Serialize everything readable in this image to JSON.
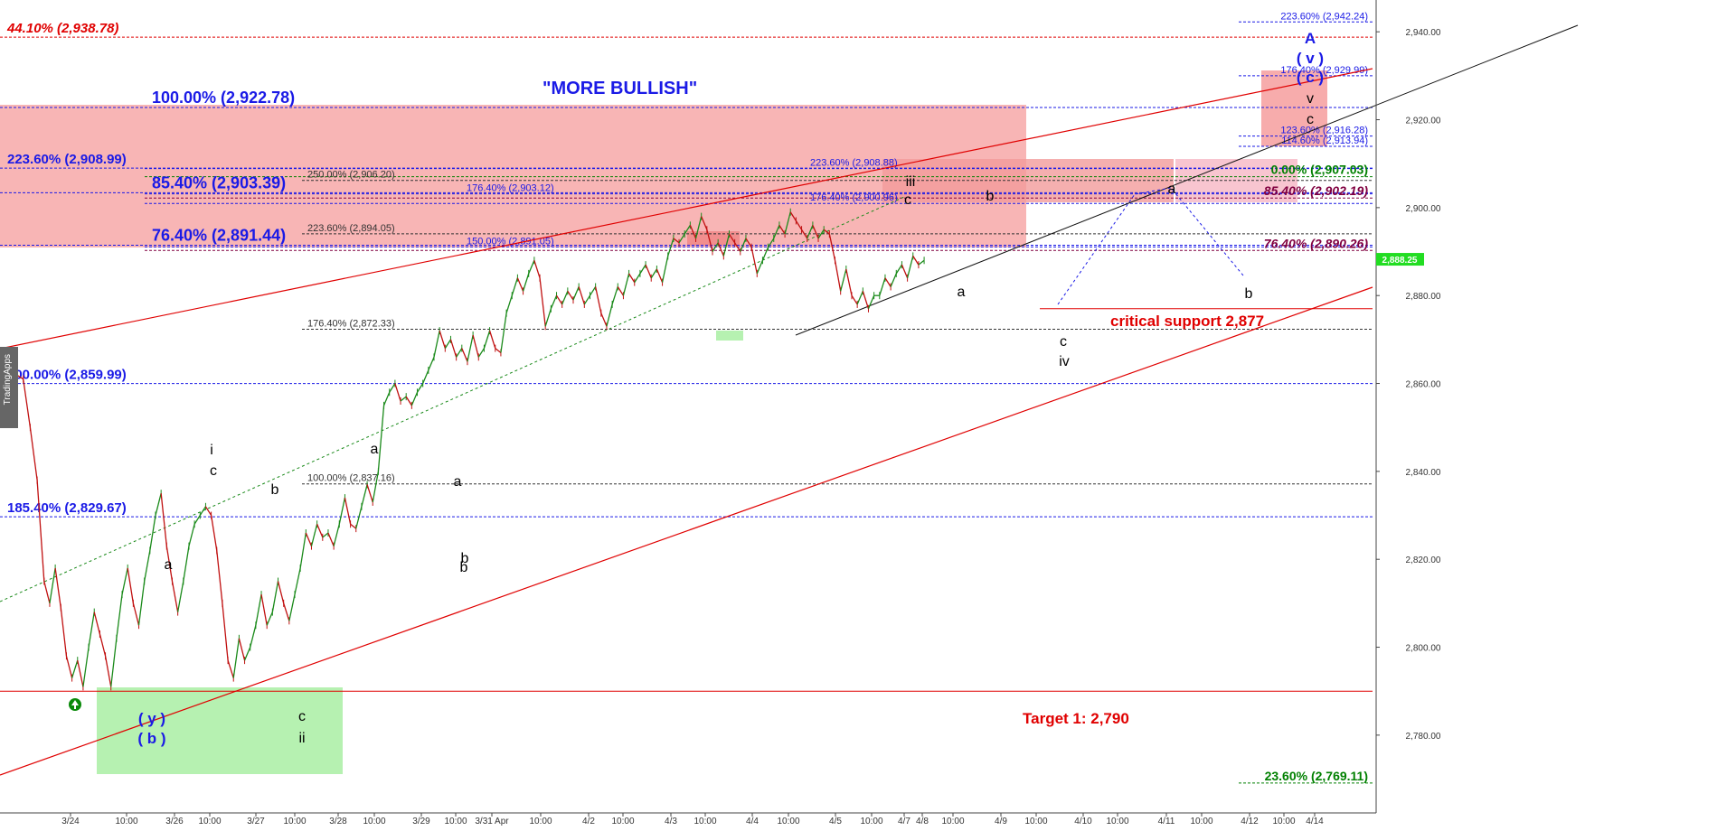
{
  "chart_data": {
    "type": "line",
    "ylim": [
      2766,
      2946
    ],
    "y_ticks": [
      "2,940.00",
      "2,920.00",
      "2,900.00",
      "2,880.00",
      "2,860.00",
      "2,840.00",
      "2,820.00",
      "2,800.00",
      "2,780.00"
    ],
    "x_ticks": [
      "3/24",
      "10:00",
      "3/26",
      "10:00",
      "3/27",
      "10:00",
      "3/28",
      "10:00",
      "3/29",
      "10:00",
      "3/31 Apr",
      "10:00",
      "4/2",
      "10:00",
      "4/3",
      "10:00",
      "4/4",
      "10:00",
      "4/5",
      "10:00",
      "4/7",
      "4/8",
      "10:00",
      "4/9",
      "10:00",
      "4/10",
      "10:00",
      "4/11",
      "10:00",
      "4/12",
      "10:00",
      "4/14"
    ],
    "last_price": "2,888.25",
    "price_path": [
      [
        0,
        2862
      ],
      [
        0.5,
        2861
      ],
      [
        1,
        2850
      ],
      [
        1.5,
        2838
      ],
      [
        2,
        2815
      ],
      [
        2.4,
        2810
      ],
      [
        2.8,
        2818
      ],
      [
        3.2,
        2809
      ],
      [
        3.6,
        2798
      ],
      [
        4,
        2793
      ],
      [
        4.4,
        2797
      ],
      [
        4.8,
        2791
      ],
      [
        5.2,
        2800
      ],
      [
        5.6,
        2808
      ],
      [
        6,
        2803
      ],
      [
        6.4,
        2798
      ],
      [
        6.8,
        2791
      ],
      [
        7.2,
        2802
      ],
      [
        7.6,
        2812
      ],
      [
        8,
        2818
      ],
      [
        8.4,
        2810
      ],
      [
        8.8,
        2805
      ],
      [
        9.2,
        2815
      ],
      [
        9.6,
        2822
      ],
      [
        10,
        2830
      ],
      [
        10.4,
        2835
      ],
      [
        10.8,
        2823
      ],
      [
        11.2,
        2815
      ],
      [
        11.6,
        2808
      ],
      [
        12,
        2815
      ],
      [
        12.4,
        2823
      ],
      [
        12.8,
        2828
      ],
      [
        13.2,
        2830
      ],
      [
        13.6,
        2832
      ],
      [
        14,
        2830
      ],
      [
        14.4,
        2822
      ],
      [
        14.8,
        2810
      ],
      [
        15.2,
        2797
      ],
      [
        15.6,
        2793
      ],
      [
        16,
        2802
      ],
      [
        16.4,
        2797
      ],
      [
        16.8,
        2800
      ],
      [
        17.2,
        2805
      ],
      [
        17.6,
        2812
      ],
      [
        18,
        2805
      ],
      [
        18.4,
        2808
      ],
      [
        18.8,
        2815
      ],
      [
        19.2,
        2810
      ],
      [
        19.6,
        2806
      ],
      [
        20,
        2812
      ],
      [
        20.4,
        2818
      ],
      [
        20.8,
        2826
      ],
      [
        21.2,
        2823
      ],
      [
        21.6,
        2828
      ],
      [
        22,
        2825
      ],
      [
        22.4,
        2826
      ],
      [
        22.8,
        2823
      ],
      [
        23.2,
        2828
      ],
      [
        23.6,
        2834
      ],
      [
        24,
        2828
      ],
      [
        24.4,
        2827
      ],
      [
        24.8,
        2832
      ],
      [
        25.2,
        2837
      ],
      [
        25.6,
        2833
      ],
      [
        26,
        2840
      ],
      [
        26.4,
        2855
      ],
      [
        26.8,
        2858
      ],
      [
        27.2,
        2860
      ],
      [
        27.6,
        2856
      ],
      [
        28,
        2857
      ],
      [
        28.4,
        2855
      ],
      [
        28.8,
        2858
      ],
      [
        29.2,
        2860
      ],
      [
        29.6,
        2863
      ],
      [
        30,
        2866
      ],
      [
        30.4,
        2872
      ],
      [
        30.8,
        2868
      ],
      [
        31.2,
        2870
      ],
      [
        31.6,
        2866
      ],
      [
        32,
        2868
      ],
      [
        32.4,
        2865
      ],
      [
        32.8,
        2871
      ],
      [
        33.2,
        2866
      ],
      [
        33.6,
        2868
      ],
      [
        34,
        2872
      ],
      [
        34.4,
        2868
      ],
      [
        34.8,
        2867
      ],
      [
        35.2,
        2876
      ],
      [
        35.6,
        2880
      ],
      [
        36,
        2884
      ],
      [
        36.4,
        2881
      ],
      [
        36.8,
        2885
      ],
      [
        37.2,
        2888
      ],
      [
        37.6,
        2884
      ],
      [
        38,
        2873
      ],
      [
        38.4,
        2877
      ],
      [
        38.8,
        2880
      ],
      [
        39.2,
        2878
      ],
      [
        39.6,
        2881
      ],
      [
        40,
        2879
      ],
      [
        40.4,
        2882
      ],
      [
        40.8,
        2878
      ],
      [
        41.2,
        2880
      ],
      [
        41.6,
        2882
      ],
      [
        42,
        2876
      ],
      [
        42.4,
        2873
      ],
      [
        42.8,
        2878
      ],
      [
        43.2,
        2882
      ],
      [
        43.6,
        2880
      ],
      [
        44,
        2885
      ],
      [
        44.4,
        2883
      ],
      [
        44.8,
        2885
      ],
      [
        45.2,
        2887
      ],
      [
        45.6,
        2884
      ],
      [
        46,
        2886
      ],
      [
        46.4,
        2883
      ],
      [
        46.8,
        2889
      ],
      [
        47.2,
        2893
      ],
      [
        47.6,
        2892
      ],
      [
        48,
        2894
      ],
      [
        48.4,
        2896
      ],
      [
        48.8,
        2893
      ],
      [
        49.2,
        2898
      ],
      [
        49.6,
        2895
      ],
      [
        50,
        2890
      ],
      [
        50.4,
        2892
      ],
      [
        50.8,
        2889
      ],
      [
        51.2,
        2894
      ],
      [
        51.6,
        2892
      ],
      [
        52,
        2890
      ],
      [
        52.4,
        2893
      ],
      [
        52.8,
        2891
      ],
      [
        53.2,
        2885
      ],
      [
        53.6,
        2888
      ],
      [
        54,
        2891
      ],
      [
        54.4,
        2893
      ],
      [
        54.8,
        2896
      ],
      [
        55.2,
        2894
      ],
      [
        55.6,
        2899
      ],
      [
        56,
        2897
      ],
      [
        56.4,
        2895
      ],
      [
        56.8,
        2893
      ],
      [
        57.2,
        2896
      ],
      [
        57.6,
        2893
      ],
      [
        58,
        2895
      ],
      [
        58.4,
        2894
      ],
      [
        58.8,
        2888
      ],
      [
        59.2,
        2881
      ],
      [
        59.6,
        2886
      ],
      [
        60,
        2880
      ],
      [
        60.4,
        2878
      ],
      [
        60.8,
        2881
      ],
      [
        61.2,
        2877
      ],
      [
        61.6,
        2880
      ],
      [
        62,
        2880
      ],
      [
        62.4,
        2884
      ],
      [
        62.8,
        2882
      ],
      [
        63.2,
        2885
      ],
      [
        63.6,
        2887
      ],
      [
        64,
        2884
      ],
      [
        64.4,
        2889
      ],
      [
        64.8,
        2887
      ],
      [
        65.2,
        2888
      ]
    ],
    "horizontal_levels": [
      {
        "value": 2942.24,
        "label_right": "223.60% (2,942.24)",
        "color": "#1a1ae6",
        "dash": true
      },
      {
        "value": 2938.78,
        "label_left": "44.10% (2,938.78)",
        "color": "#e00000",
        "dash": true
      },
      {
        "value": 2929.99,
        "label_right": "176.40% (2,929.99)",
        "color": "#1a1ae6",
        "dash": true
      },
      {
        "value": 2922.78,
        "label_left": "100.00% (2,922.78)",
        "color": "#1a1ae6",
        "dash": true
      },
      {
        "value": 2916.28,
        "label_right": "123.60% (2,916.28)",
        "color": "#1a1ae6",
        "dash": true
      },
      {
        "value": 2913.94,
        "label_right": "114.60% (2,913.94)",
        "color": "#1a1ae6",
        "dash": true
      },
      {
        "value": 2908.99,
        "label_left": "223.60% (2,908.99)",
        "color": "#1a1ae6",
        "dash": true
      },
      {
        "value": 2908.88,
        "label_mid": "223.60% (2,908.88)",
        "color": "#1a1ae6",
        "dash": true
      },
      {
        "value": 2907.03,
        "label_right": "0.00% (2,907.03)",
        "color": "#008000",
        "dash": true
      },
      {
        "value": 2906.2,
        "label_mid": "250.00% (2,906.20)",
        "color": "#333333",
        "dash": true
      },
      {
        "value": 2903.39,
        "label_left": "85.40% (2,903.39)",
        "color": "#1a1ae6",
        "dash": true
      },
      {
        "value": 2903.12,
        "label_mid": "176.40% (2,903.12)",
        "color": "#1a1ae6",
        "dash": true
      },
      {
        "value": 2902.19,
        "label_right": "85.40% (2,902.19)",
        "color": "#800040",
        "dash": true
      },
      {
        "value": 2900.96,
        "label_mid": "176.40% (2,900.96)",
        "color": "#1a1ae6",
        "dash": true
      },
      {
        "value": 2894.05,
        "label_mid": "223.60% (2,894.05)",
        "color": "#333333",
        "dash": true
      },
      {
        "value": 2891.44,
        "label_left": "76.40% (2,891.44)",
        "color": "#1a1ae6",
        "dash": true
      },
      {
        "value": 2891.05,
        "label_mid": "150.00% (2,891.05)",
        "color": "#1a1ae6",
        "dash": true
      },
      {
        "value": 2890.26,
        "label_right": "76.40% (2,890.26)",
        "color": "#800040",
        "dash": true
      },
      {
        "value": 2872.33,
        "label_mid": "176.40% (2,872.33)",
        "color": "#333333",
        "dash": true
      },
      {
        "value": 2859.99,
        "label_left": "100.00% (2,859.99)",
        "color": "#1a1ae6",
        "dash": true
      },
      {
        "value": 2837.16,
        "label_mid": "100.00% (2,837.16)",
        "color": "#333333",
        "dash": true
      },
      {
        "value": 2829.67,
        "label_left": "185.40% (2,829.67)",
        "color": "#1a1ae6",
        "dash": true
      },
      {
        "value": 2790,
        "color": "#e00000",
        "dash": false
      },
      {
        "value": 2877,
        "color": "#e00000",
        "dash": false
      },
      {
        "value": 2769.11,
        "label_right": "23.60% (2,769.11)",
        "color": "#008000",
        "dash": true
      }
    ],
    "annotations": [
      {
        "text": "\"MORE BULLISH\"",
        "color": "#1a1ae6"
      },
      {
        "text": "critical  support 2,877",
        "color": "#e00000"
      },
      {
        "text": "Target 1: 2,790",
        "color": "#e00000"
      }
    ],
    "wave_labels": [
      "i",
      "c",
      "a",
      "b",
      "a",
      "b",
      "c",
      "ii",
      "( y )",
      "( b )",
      "a",
      "b",
      "iii",
      "c",
      "a",
      "b",
      "c",
      "iv",
      "a",
      "b",
      "A",
      "( v )",
      "( c )",
      "v",
      "c"
    ]
  },
  "watermark": "TradingApps",
  "colors": {
    "resistance_fill": "#f7a8a8",
    "support_fill": "#aef0a8",
    "price_up": "#1a8a1a",
    "price_down": "#c01010",
    "blue": "#1a1ae6",
    "red": "#e00000"
  }
}
